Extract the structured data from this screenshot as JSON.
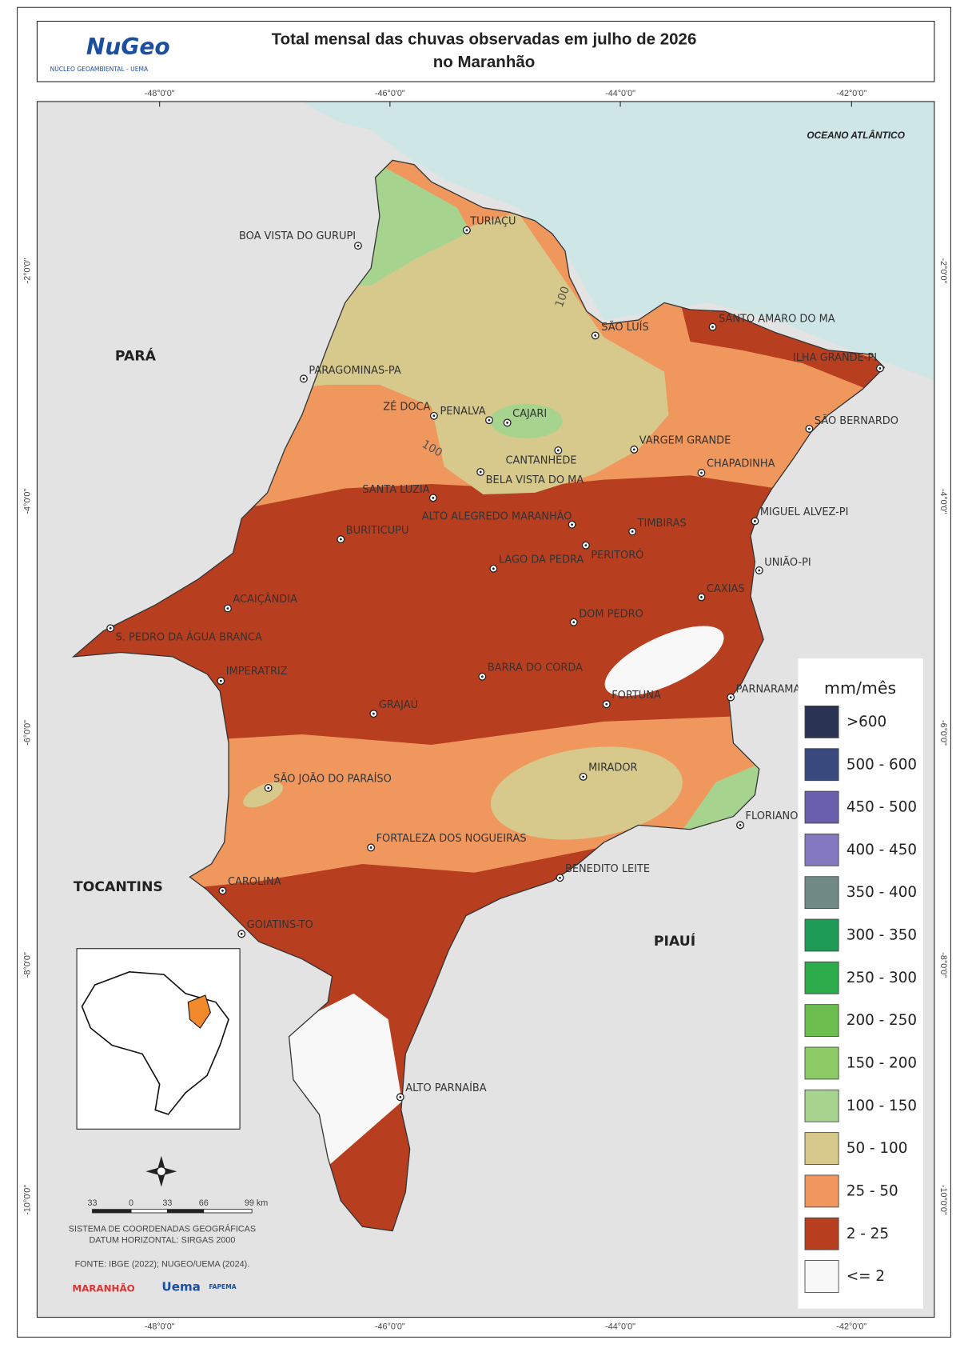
{
  "header": {
    "title_line1": "Total mensal das chuvas observadas em julho de 2026",
    "title_line2": "no Maranhão",
    "logo": "NuGeo",
    "logo_sub": "NÚCLEO GEOAMBIENTAL - UEMA"
  },
  "map": {
    "lon_labels": [
      "-48°0'0\"",
      "-46°0'0\"",
      "-44°0'0\"",
      "-42°0'0\""
    ],
    "lat_labels": [
      "-2°0'0\"",
      "-4°0'0\"",
      "-6°0'0\"",
      "-8°0'0\"",
      "-10°0'0\""
    ],
    "regions": [
      "PARÁ",
      "TOCANTINS",
      "PIAUÍ"
    ],
    "ocean": "OCEANO ATLÂNTICO",
    "contour_labels": [
      "100",
      "100"
    ],
    "cities": [
      "TURIAÇU",
      "BOA VISTA DO GURUPI",
      "SÃO LUÍS",
      "SANTO AMARO DO MA",
      "ILHA GRANDE-PI",
      "PARAGOMINAS-PA",
      "ZÉ DOCA",
      "PENALVA",
      "CAJARI",
      "SÃO BERNARDO",
      "VARGEM GRANDE",
      "CANTANHEDE",
      "CHAPADINHA",
      "BELA VISTA DO MA",
      "SANTA LUZIA",
      "MIGUEL ALVEZ-PI",
      "ALTO ALEGREDO MARANHÃO",
      "TIMBIRAS",
      "BURITICUPU",
      "PERITORÓ",
      "LAGO DA PEDRA",
      "UNIÃO-PI",
      "CAXIAS",
      "ACAIÇÂNDIA",
      "DOM PEDRO",
      "S. PEDRO DA ÁGUA BRANCA",
      "BARRA DO CORDA",
      "IMPERATRIZ",
      "FORTUNA",
      "PARNARAMA",
      "GRAJAÚ",
      "MIRADOR",
      "SÃO JOÃO DO PARAÍSO",
      "FLORIANO-",
      "FORTALEZA DOS NOGUEIRAS",
      "BENEDITO LEITE",
      "CAROLINA",
      "GOIATINS-TO",
      "ALTO PARNAÍBA"
    ]
  },
  "legend": {
    "title": "mm/mês",
    "items": [
      {
        "label": ">600",
        "color": "#2a3353"
      },
      {
        "label": "500 - 600",
        "color": "#3a4a7e"
      },
      {
        "label": "450 - 500",
        "color": "#6a5fac"
      },
      {
        "label": "400 - 450",
        "color": "#8479c1"
      },
      {
        "label": "350 - 400",
        "color": "#728a86"
      },
      {
        "label": "300 - 350",
        "color": "#1d9b57"
      },
      {
        "label": "250 - 300",
        "color": "#2bab4a"
      },
      {
        "label": "200 - 250",
        "color": "#6cbf4e"
      },
      {
        "label": "150 - 200",
        "color": "#8ccb66"
      },
      {
        "label": "100 - 150",
        "color": "#a6d48f"
      },
      {
        "label": "50 - 100",
        "color": "#d7c98b"
      },
      {
        "label": "25 - 50",
        "color": "#f0975e"
      },
      {
        "label": "2 - 25",
        "color": "#b83e20"
      },
      {
        "label": "<= 2",
        "color": "#f8f8f8"
      }
    ]
  },
  "scale": {
    "ticks": [
      "33",
      "0",
      "33",
      "66",
      "99 km"
    ]
  },
  "credits": {
    "crs": "SISTEMA DE COORDENADAS GEOGRÁFICAS",
    "datum": "DATUM HORIZONTAL: SIRGAS 2000",
    "source": "FONTE: IBGE (2022); NUGEO/UEMA (2024).",
    "logos": [
      "MARANHÃO",
      "Uema",
      "FAPEMA"
    ]
  }
}
